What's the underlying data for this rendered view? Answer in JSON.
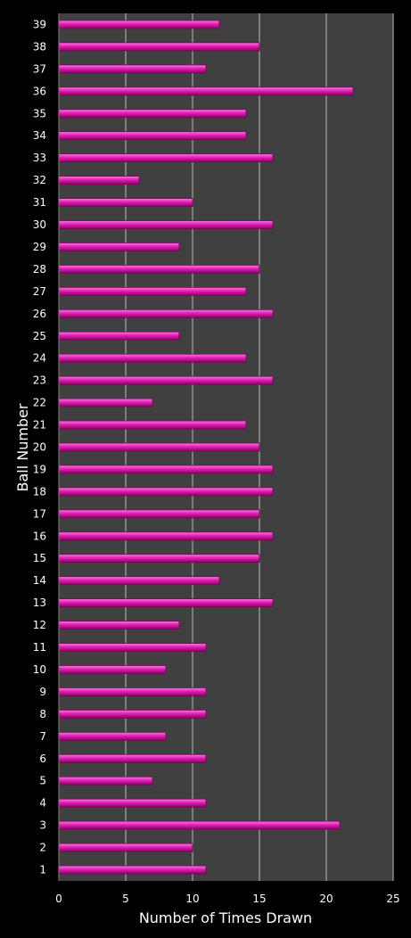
{
  "chart_data": {
    "type": "bar",
    "orientation": "horizontal",
    "title": "",
    "xlabel": "Number of Times Drawn",
    "ylabel": "Ball Number",
    "xlim": [
      0,
      25
    ],
    "xticks": [
      0,
      5,
      10,
      15,
      20,
      25
    ],
    "grid": true,
    "legend": "none",
    "colors": {
      "background": "#000000",
      "plot_area": "#404040",
      "bar": "#e020b0",
      "bar_highlight": "#ff66dd",
      "bar_edge": "#7a005c",
      "grid": "#bdbdbd",
      "text": "#ffffff"
    },
    "categories": [
      "1",
      "2",
      "3",
      "4",
      "5",
      "6",
      "7",
      "8",
      "9",
      "10",
      "11",
      "12",
      "13",
      "14",
      "15",
      "16",
      "17",
      "18",
      "19",
      "20",
      "21",
      "22",
      "23",
      "24",
      "25",
      "26",
      "27",
      "28",
      "29",
      "30",
      "31",
      "32",
      "33",
      "34",
      "35",
      "36",
      "37",
      "38",
      "39"
    ],
    "values": [
      11,
      10,
      21,
      11,
      7,
      11,
      8,
      11,
      11,
      8,
      11,
      9,
      16,
      12,
      15,
      16,
      15,
      16,
      16,
      15,
      14,
      7,
      16,
      14,
      9,
      16,
      14,
      15,
      9,
      16,
      10,
      6,
      16,
      14,
      14,
      22,
      11,
      15,
      12
    ]
  }
}
